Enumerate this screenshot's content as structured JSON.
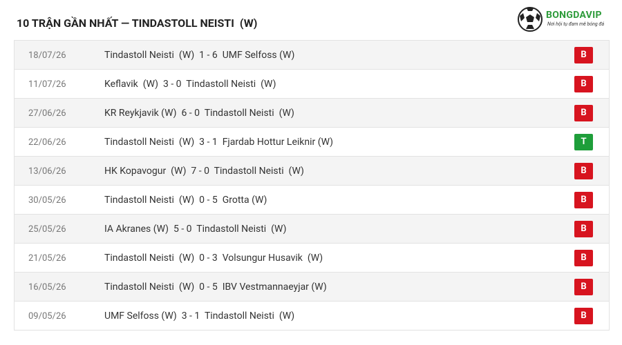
{
  "header": {
    "title": "10 TRẬN GẦN NHẤT — TINDASTOLL NEISTI  (W)"
  },
  "logo": {
    "name": "BONGDAVIP",
    "tagline": "Nơi hội tụ đam mê bóng đá"
  },
  "table": {
    "rows": [
      {
        "date": "18/07/26",
        "home": "Tindastoll Neisti  (W)",
        "score": "1 - 6",
        "away": "UMF Selfoss (W)",
        "result": "B"
      },
      {
        "date": "11/07/26",
        "home": "Keflavik  (W)",
        "score": "3 - 0",
        "away": "Tindastoll Neisti  (W)",
        "result": "B"
      },
      {
        "date": "27/06/26",
        "home": "KR Reykjavik (W)",
        "score": "6 - 0",
        "away": "Tindastoll Neisti  (W)",
        "result": "B"
      },
      {
        "date": "22/06/26",
        "home": "Tindastoll Neisti  (W)",
        "score": "3 - 1",
        "away": "Fjardab Hottur Leiknir (W)",
        "result": "T"
      },
      {
        "date": "13/06/26",
        "home": "HK Kopavogur  (W)",
        "score": "7 - 0",
        "away": "Tindastoll Neisti  (W)",
        "result": "B"
      },
      {
        "date": "30/05/26",
        "home": "Tindastoll Neisti  (W)",
        "score": "0 - 5",
        "away": "Grotta (W)",
        "result": "B"
      },
      {
        "date": "25/05/26",
        "home": "IA Akranes (W)",
        "score": "5 - 0",
        "away": "Tindastoll Neisti  (W)",
        "result": "B"
      },
      {
        "date": "21/05/26",
        "home": "Tindastoll Neisti  (W)",
        "score": "0 - 3",
        "away": "Volsungur Husavik  (W)",
        "result": "B"
      },
      {
        "date": "16/05/26",
        "home": "Tindastoll Neisti  (W)",
        "score": "0 - 5",
        "away": "IBV Vestmannaeyjar (W)",
        "result": "B"
      },
      {
        "date": "09/05/26",
        "home": "UMF Selfoss (W)",
        "score": "3 - 1",
        "away": "Tindastoll Neisti  (W)",
        "result": "B"
      }
    ]
  }
}
